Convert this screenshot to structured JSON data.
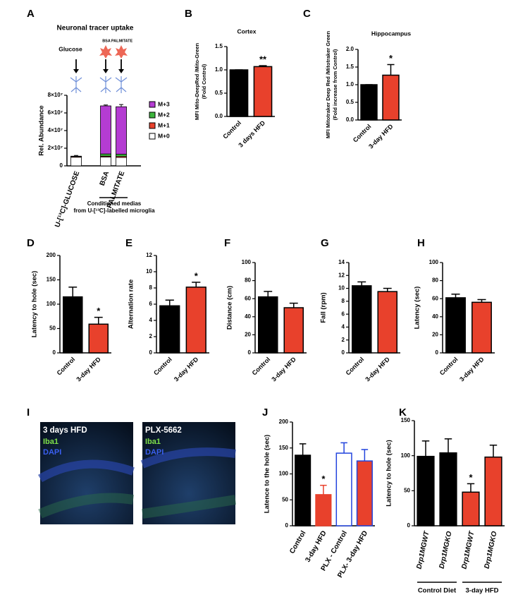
{
  "chart_data": [
    {
      "panel": "A",
      "type": "stacked_bar",
      "title": "Neuronal tracer uptake",
      "ylabel": "Rel. Abundance",
      "categories": [
        "U-[¹³C]-GLUCOSE",
        "BSA",
        "PALMITATE"
      ],
      "treatments": [
        "Glucose",
        "BSA",
        "PALMITATE"
      ],
      "group_label": [
        "Conditioned medias",
        "from U-[¹³C]-labelled microglia"
      ],
      "series": [
        {
          "name": "M+0",
          "color": "#ffffff",
          "values": [
            9800000,
            10000000,
            9500000
          ]
        },
        {
          "name": "M+1",
          "color": "#e8412c",
          "values": [
            800000,
            1000000,
            1200000
          ]
        },
        {
          "name": "M+2",
          "color": "#3cb43c",
          "values": [
            200000,
            2500000,
            2500000
          ]
        },
        {
          "name": "M+3",
          "color": "#b43cd2",
          "values": [
            200000,
            54500000,
            53800000
          ]
        }
      ],
      "errors": [
        800000,
        1000000,
        2500000
      ],
      "ylim": [
        0,
        80000000
      ],
      "yticks": [
        0,
        {
          "value": 20000000,
          "label": "2×10⁷"
        },
        {
          "value": 40000000,
          "label": "4×10⁷"
        },
        {
          "value": 60000000,
          "label": "6×10⁷"
        },
        {
          "value": 80000000,
          "label": "8×10⁷"
        }
      ]
    },
    {
      "panel": "B",
      "type": "bar",
      "title": "Cortex",
      "ylabel": [
        "MFI Mito-DeepRed /Mito-Green",
        "(Fold Control)"
      ],
      "categories": [
        "Control",
        "3 days HFD"
      ],
      "values": [
        1.0,
        1.07
      ],
      "errors": [
        0,
        0.02
      ],
      "colors": [
        "#000000",
        "#e8412c"
      ],
      "significance": [
        null,
        "**"
      ],
      "ylim": [
        0,
        1.5
      ],
      "yticks": [
        {
          "value": 0,
          "label": "0.0"
        },
        {
          "value": 0.5,
          "label": "0.5"
        },
        {
          "value": 1,
          "label": "1.0"
        },
        {
          "value": 1.5,
          "label": "1.5"
        }
      ]
    },
    {
      "panel": "C",
      "type": "bar",
      "title": "Hippocampus",
      "ylabel": [
        "MFI Mitotraker Deep Red /Mitotraker Green",
        "(Fold increase from Control)"
      ],
      "categories": [
        "Control",
        "3-day HFD"
      ],
      "values": [
        1.0,
        1.27
      ],
      "errors": [
        0,
        0.3
      ],
      "colors": [
        "#000000",
        "#e8412c"
      ],
      "significance": [
        null,
        "*"
      ],
      "ylim": [
        0,
        2
      ],
      "yticks": [
        {
          "value": 0,
          "label": "0.0"
        },
        {
          "value": 0.5,
          "label": "0.5"
        },
        {
          "value": 1,
          "label": "1.0"
        },
        {
          "value": 1.5,
          "label": "1.5"
        },
        {
          "value": 2,
          "label": "2.0"
        }
      ]
    },
    {
      "panel": "D",
      "type": "bar",
      "ylabel": "Latency to hole (sec)",
      "categories": [
        "Control",
        "3-day HFD"
      ],
      "values": [
        115,
        59
      ],
      "errors": [
        20,
        14
      ],
      "colors": [
        "#000000",
        "#e8412c"
      ],
      "significance": [
        null,
        "*"
      ],
      "ylim": [
        0,
        200
      ],
      "yticks": [
        0,
        50,
        100,
        150,
        200
      ]
    },
    {
      "panel": "E",
      "type": "bar",
      "ylabel": "Alternation rate",
      "categories": [
        "Control",
        "3-day HFD"
      ],
      "values": [
        5.8,
        8.1
      ],
      "errors": [
        0.7,
        0.6
      ],
      "colors": [
        "#000000",
        "#e8412c"
      ],
      "significance": [
        null,
        "*"
      ],
      "ylim": [
        0,
        12
      ],
      "yticks": [
        0,
        2,
        4,
        6,
        8,
        10,
        12
      ]
    },
    {
      "panel": "F",
      "type": "bar",
      "ylabel": "Distance (cm)",
      "categories": [
        "Control",
        "3-day HFD"
      ],
      "values": [
        62,
        50
      ],
      "errors": [
        6,
        5
      ],
      "colors": [
        "#000000",
        "#e8412c"
      ],
      "ylim": [
        0,
        100
      ],
      "yticks": [
        0,
        20,
        40,
        60,
        80,
        100
      ]
    },
    {
      "panel": "G",
      "type": "bar",
      "ylabel": "Fall (rpm)",
      "categories": [
        "Control",
        "3-day HFD"
      ],
      "values": [
        10.4,
        9.5
      ],
      "errors": [
        0.6,
        0.5
      ],
      "colors": [
        "#000000",
        "#e8412c"
      ],
      "ylim": [
        0,
        14
      ],
      "yticks": [
        0,
        2,
        4,
        6,
        8,
        10,
        12,
        14
      ]
    },
    {
      "panel": "H",
      "type": "bar",
      "ylabel": "Latency (sec)",
      "categories": [
        "Control",
        "3-day HFD"
      ],
      "values": [
        61,
        56
      ],
      "errors": [
        4,
        3
      ],
      "colors": [
        "#000000",
        "#e8412c"
      ],
      "ylim": [
        0,
        100
      ],
      "yticks": [
        0,
        20,
        40,
        60,
        80,
        100
      ]
    },
    {
      "panel": "I",
      "type": "image",
      "images": [
        {
          "title": "3 days HFD",
          "stains": [
            "Iba1",
            "DAPI"
          ]
        },
        {
          "title": "PLX-5662",
          "stains": [
            "Iba1",
            "DAPI"
          ]
        }
      ],
      "stain_colors": [
        "#7ee04a",
        "#3a5ff0"
      ]
    },
    {
      "panel": "J",
      "type": "bar",
      "ylabel": "Latence to the hole (sec)",
      "categories": [
        "Control",
        "3-day HFD",
        "PLX - Control",
        "PLX- 3-day HFD"
      ],
      "values": [
        136,
        60,
        140,
        125
      ],
      "errors": [
        22,
        18,
        20,
        22
      ],
      "colors": [
        "#000000",
        "#e8412c",
        "#ffffff",
        "#e8412c"
      ],
      "edge_colors": [
        "#000000",
        "#e8412c",
        "#2244dd",
        "#2244dd"
      ],
      "significance": [
        null,
        "*",
        null,
        null
      ],
      "ylim": [
        0,
        200
      ],
      "yticks": [
        0,
        50,
        100,
        150,
        200
      ]
    },
    {
      "panel": "K",
      "type": "bar",
      "ylabel": "Latency to hole (sec)",
      "categories": [
        "Drp1MGWT",
        "Drp1MGKO",
        "Drp1MGWT",
        "Drp1MGKO"
      ],
      "italic_categories": true,
      "values": [
        99,
        104,
        48,
        98
      ],
      "errors": [
        22,
        20,
        12,
        17
      ],
      "colors": [
        "#000000",
        "#000000",
        "#e8412c",
        "#e8412c"
      ],
      "significance": [
        null,
        null,
        "*",
        null
      ],
      "groups": [
        "Control Diet",
        "3-day HFD"
      ],
      "ylim": [
        0,
        150
      ],
      "yticks": [
        0,
        50,
        100,
        150
      ]
    }
  ]
}
